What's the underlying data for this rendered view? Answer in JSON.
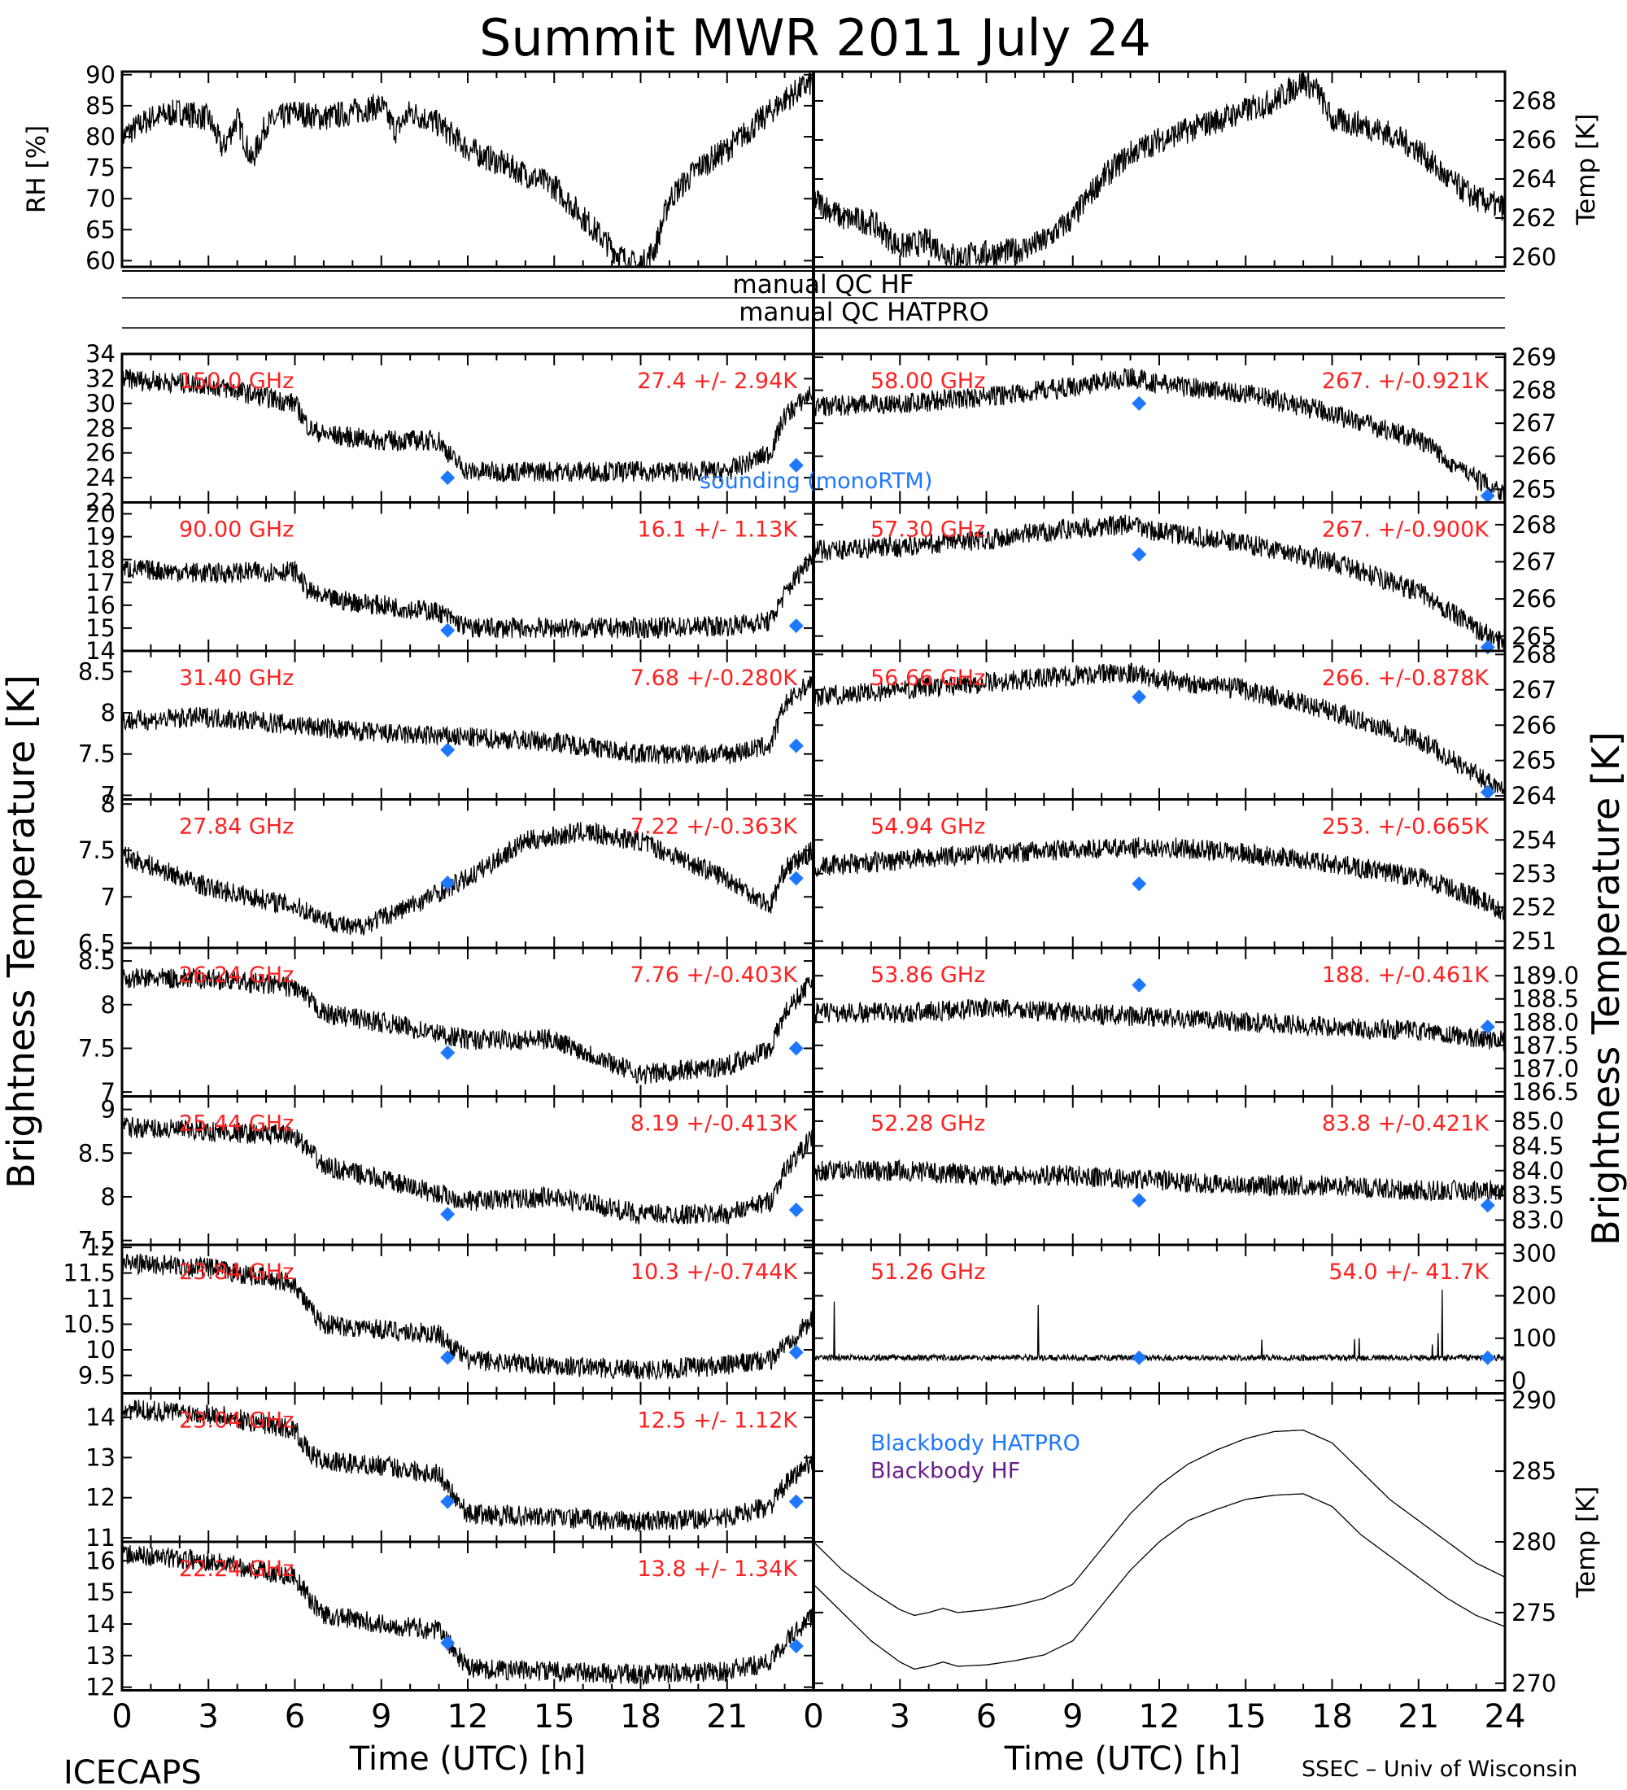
{
  "title": "Summit MWR 2011 July 24",
  "footer": {
    "left_label": "ICECAPS",
    "right_label": "SSEC – Univ of Wisconsin",
    "xlabel": "Time (UTC) [h]"
  },
  "qc": {
    "hf_label": "manual QC HF",
    "hatpro_label": "manual QC HATPRO"
  },
  "left_axis_label": "Brightness Temperature [K]",
  "right_axis_label": "Brightness Temperature [K]",
  "legend": {
    "sounding": "sounding (monoRTM)"
  },
  "colors": {
    "channel_label": "#ff2020",
    "sounding": "#1e78ff",
    "bb_hatpro": "#1e78ff",
    "bb_hf": "#6a1f8a"
  },
  "chart_data": [
    {
      "type": "line",
      "id": "rh",
      "ylabel": "RH [%]",
      "xlim": [
        0,
        24
      ],
      "ylim": [
        59,
        90.5
      ],
      "yticks": [
        60,
        65,
        70,
        75,
        80,
        85,
        90
      ],
      "x": [
        0,
        1,
        2,
        3,
        3.5,
        4,
        4.5,
        5,
        5.5,
        6,
        7,
        8,
        9,
        9.5,
        10,
        10.5,
        11,
        12,
        13,
        14,
        15,
        16,
        17,
        17.5,
        18,
        18.5,
        19,
        20,
        21,
        22,
        23,
        24
      ],
      "values": [
        80,
        83,
        84,
        83,
        78,
        83,
        76,
        82,
        83,
        84,
        83,
        84,
        85,
        81,
        84,
        83,
        82,
        78,
        76,
        74,
        72,
        67,
        62,
        60,
        59,
        62,
        70,
        75,
        78,
        82,
        86,
        89
      ]
    },
    {
      "type": "line",
      "id": "temp",
      "ylabel": "Temp [K]",
      "xlim": [
        0,
        24
      ],
      "ylim": [
        259.5,
        269.5
      ],
      "yticks": [
        260,
        262,
        264,
        266,
        268
      ],
      "x": [
        0,
        1,
        2,
        3,
        4,
        4.5,
        5,
        6,
        7,
        8,
        9,
        10,
        11,
        12,
        13,
        14,
        15,
        16,
        17,
        17.5,
        18,
        19,
        20,
        21,
        22,
        23,
        24
      ],
      "values": [
        263,
        262,
        261.8,
        260.5,
        260.8,
        260.3,
        260,
        260.2,
        260.3,
        260.8,
        262,
        264,
        265.3,
        266,
        266.5,
        267,
        267.5,
        268,
        269,
        268.5,
        267,
        266.8,
        266.3,
        265.5,
        264,
        263,
        262.5
      ]
    },
    {
      "type": "line",
      "id": "l150",
      "channel": "150.0 GHz",
      "stats": "27.4 +/-  2.94K",
      "ylim": [
        22,
        34
      ],
      "yticks": [
        22,
        24,
        26,
        28,
        30,
        32,
        34
      ],
      "x": [
        0,
        3,
        6,
        6.5,
        7,
        9,
        11,
        11.5,
        12,
        15,
        18,
        21,
        22.5,
        23,
        24
      ],
      "values": [
        32,
        31.5,
        30,
        28,
        27.5,
        27,
        27,
        25.5,
        24.5,
        24.5,
        24.5,
        24.5,
        26,
        29,
        31
      ],
      "sounding": [
        [
          11.3,
          24
        ],
        [
          23.4,
          25
        ]
      ]
    },
    {
      "type": "line",
      "id": "l90",
      "channel": "90.00 GHz",
      "stats": "16.1 +/-  1.13K",
      "ylim": [
        14,
        20.5
      ],
      "yticks": [
        14,
        15,
        16,
        17,
        18,
        19,
        20
      ],
      "x": [
        0,
        3,
        6,
        6.5,
        7,
        9,
        11,
        12,
        15,
        18,
        21,
        22.5,
        23,
        24
      ],
      "values": [
        17.6,
        17.4,
        17.5,
        16.6,
        16.3,
        16,
        15.7,
        15,
        15,
        15,
        15.1,
        15.3,
        16.5,
        18.3
      ],
      "sounding": [
        [
          11.3,
          14.9
        ],
        [
          23.4,
          15.1
        ]
      ]
    },
    {
      "type": "line",
      "id": "l3140",
      "channel": "31.40 GHz",
      "stats": "7.68 +/-0.280K",
      "ylim": [
        6.95,
        8.75
      ],
      "yticks": [
        7.0,
        7.5,
        8.0,
        8.5
      ],
      "x": [
        0,
        3,
        6,
        9,
        12,
        15,
        18,
        21,
        22.5,
        23,
        24
      ],
      "values": [
        7.9,
        7.95,
        7.85,
        7.75,
        7.7,
        7.65,
        7.5,
        7.5,
        7.6,
        8.1,
        8.4
      ],
      "sounding": [
        [
          11.3,
          7.55
        ],
        [
          23.4,
          7.6
        ]
      ]
    },
    {
      "type": "line",
      "id": "l2784",
      "channel": "27.84 GHz",
      "stats": "7.22 +/-0.363K",
      "ylim": [
        6.45,
        8.05
      ],
      "yticks": [
        6.5,
        7.0,
        7.5,
        8.0
      ],
      "x": [
        0,
        3,
        6,
        8,
        10,
        12,
        14,
        16,
        18,
        21,
        22.5,
        23,
        24
      ],
      "values": [
        7.45,
        7.1,
        6.9,
        6.65,
        6.9,
        7.2,
        7.6,
        7.7,
        7.6,
        7.2,
        6.9,
        7.3,
        7.5
      ],
      "sounding": [
        [
          11.3,
          7.15
        ],
        [
          23.4,
          7.2
        ]
      ]
    },
    {
      "type": "line",
      "id": "l2624",
      "channel": "26.24 GHz",
      "stats": "7.76 +/-0.403K",
      "ylim": [
        6.95,
        8.65
      ],
      "yticks": [
        7.0,
        7.5,
        8.0,
        8.5
      ],
      "x": [
        0,
        3,
        6,
        7,
        9,
        12,
        15,
        18,
        21,
        22.5,
        23,
        24
      ],
      "values": [
        8.3,
        8.3,
        8.2,
        7.9,
        7.8,
        7.6,
        7.6,
        7.2,
        7.3,
        7.5,
        7.9,
        8.3
      ],
      "sounding": [
        [
          11.3,
          7.45
        ],
        [
          23.4,
          7.5
        ]
      ]
    },
    {
      "type": "line",
      "id": "l2544",
      "channel": "25.44 GHz",
      "stats": "8.19 +/-0.413K",
      "ylim": [
        7.45,
        9.15
      ],
      "yticks": [
        7.5,
        8.0,
        8.5,
        9.0
      ],
      "x": [
        0,
        3,
        6,
        7,
        9,
        12,
        15,
        18,
        21,
        22.5,
        23,
        24
      ],
      "values": [
        8.8,
        8.75,
        8.7,
        8.35,
        8.2,
        7.95,
        8.0,
        7.8,
        7.8,
        7.95,
        8.3,
        8.7
      ],
      "sounding": [
        [
          11.3,
          7.8
        ],
        [
          23.4,
          7.85
        ]
      ]
    },
    {
      "type": "line",
      "id": "l2384",
      "channel": "23.84 GHz",
      "stats": "10.3 +/-0.744K",
      "ylim": [
        9.15,
        12.05
      ],
      "yticks": [
        9.5,
        10.0,
        10.5,
        11.0,
        11.5,
        12.0
      ],
      "x": [
        0,
        3,
        6,
        6.5,
        7,
        9,
        11,
        12,
        15,
        18,
        21,
        22.5,
        23,
        24
      ],
      "values": [
        11.7,
        11.6,
        11.3,
        10.8,
        10.5,
        10.4,
        10.3,
        9.8,
        9.7,
        9.6,
        9.7,
        9.8,
        10.1,
        10.6
      ],
      "sounding": [
        [
          11.3,
          9.85
        ],
        [
          23.4,
          9.95
        ]
      ]
    },
    {
      "type": "line",
      "id": "l2304",
      "channel": "23.04 GHz",
      "stats": "12.5 +/-  1.12K",
      "ylim": [
        10.9,
        14.6
      ],
      "yticks": [
        11,
        12,
        13,
        14
      ],
      "x": [
        0,
        3,
        6,
        6.5,
        7,
        9,
        11,
        12,
        15,
        18,
        21,
        22.5,
        23,
        24
      ],
      "values": [
        14.2,
        14.1,
        13.7,
        13.1,
        12.9,
        12.8,
        12.6,
        11.6,
        11.5,
        11.4,
        11.5,
        11.8,
        12.3,
        13.0
      ],
      "sounding": [
        [
          11.3,
          11.9
        ],
        [
          23.4,
          11.9
        ]
      ]
    },
    {
      "type": "line",
      "id": "l2224",
      "channel": "22.24 GHz",
      "stats": "13.8 +/-  1.34K",
      "ylim": [
        11.9,
        16.6
      ],
      "yticks": [
        12,
        13,
        14,
        15,
        16
      ],
      "x": [
        0,
        3,
        6,
        6.5,
        7,
        9,
        11,
        12,
        15,
        18,
        21,
        22.5,
        23,
        24
      ],
      "values": [
        16.2,
        16.0,
        15.5,
        14.8,
        14.3,
        14.0,
        13.8,
        12.6,
        12.5,
        12.4,
        12.5,
        12.8,
        13.4,
        14.3
      ],
      "sounding": [
        [
          11.3,
          13.4
        ],
        [
          23.4,
          13.3
        ]
      ]
    },
    {
      "type": "line",
      "id": "r5800",
      "channel": "58.00 GHz",
      "stats": "267. +/-0.921K",
      "ylim": [
        264.6,
        269.1
      ],
      "yticks": [
        265,
        266,
        267,
        268,
        269
      ],
      "x": [
        0,
        3,
        6,
        9,
        11,
        12,
        15,
        18,
        21,
        23,
        24
      ],
      "values": [
        267.5,
        267.6,
        267.8,
        268.1,
        268.4,
        268.2,
        267.9,
        267.3,
        266.5,
        265.3,
        264.9
      ],
      "sounding": [
        [
          11.3,
          267.6
        ],
        [
          23.4,
          264.8
        ]
      ]
    },
    {
      "type": "line",
      "id": "r5730",
      "channel": "57.30 GHz",
      "stats": "267. +/-0.900K",
      "ylim": [
        264.6,
        268.6
      ],
      "yticks": [
        265,
        266,
        267,
        268
      ],
      "x": [
        0,
        3,
        6,
        9,
        11,
        12,
        15,
        18,
        21,
        23,
        24
      ],
      "values": [
        267.3,
        267.4,
        267.6,
        267.9,
        268.0,
        267.8,
        267.5,
        267.0,
        266.2,
        265.2,
        264.8
      ],
      "sounding": [
        [
          11.3,
          267.2
        ],
        [
          23.4,
          264.7
        ]
      ]
    },
    {
      "type": "line",
      "id": "r5666",
      "channel": "56.66 GHz",
      "stats": "266. +/-0.878K",
      "ylim": [
        263.9,
        268.1
      ],
      "yticks": [
        264,
        265,
        266,
        267,
        268
      ],
      "x": [
        0,
        3,
        6,
        9,
        11,
        12,
        15,
        18,
        21,
        23,
        24
      ],
      "values": [
        266.8,
        267.0,
        267.2,
        267.4,
        267.5,
        267.3,
        267.0,
        266.4,
        265.6,
        264.6,
        264.2
      ],
      "sounding": [
        [
          11.3,
          266.8
        ],
        [
          23.4,
          264.1
        ]
      ]
    },
    {
      "type": "line",
      "id": "r5494",
      "channel": "54.94 GHz",
      "stats": "253. +/-0.665K",
      "ylim": [
        250.8,
        255.2
      ],
      "yticks": [
        251,
        252,
        253,
        254
      ],
      "x": [
        0,
        3,
        6,
        9,
        12,
        15,
        18,
        21,
        23,
        24
      ],
      "values": [
        253.2,
        253.4,
        253.6,
        253.7,
        253.8,
        253.6,
        253.3,
        252.9,
        252.3,
        251.8
      ],
      "sounding": [
        [
          11.3,
          252.7
        ]
      ]
    },
    {
      "type": "line",
      "id": "r5386",
      "channel": "53.86 GHz",
      "stats": "188. +/-0.461K",
      "ylim": [
        186.4,
        189.6
      ],
      "yticks": [
        186.5,
        187.0,
        187.5,
        188.0,
        188.5,
        189.0
      ],
      "ytick_labels": [
        "186.5",
        "187.0",
        "187.5",
        "188.0",
        "188.5",
        "189.0"
      ],
      "x": [
        0,
        3,
        6,
        9,
        12,
        15,
        18,
        21,
        24
      ],
      "values": [
        188.2,
        188.2,
        188.3,
        188.2,
        188.1,
        188.0,
        187.9,
        187.8,
        187.6
      ],
      "sounding": [
        [
          11.3,
          188.8
        ],
        [
          23.4,
          187.9
        ]
      ]
    },
    {
      "type": "line",
      "id": "r5228",
      "channel": "52.28 GHz",
      "stats": "83.8 +/-0.421K",
      "ylim": [
        82.5,
        85.5
      ],
      "yticks": [
        83.0,
        83.5,
        84.0,
        84.5,
        85.0
      ],
      "ytick_labels": [
        "83.0",
        "83.5",
        "84.0",
        "84.5",
        "85.0"
      ],
      "x": [
        0,
        3,
        6,
        9,
        12,
        15,
        18,
        21,
        24
      ],
      "values": [
        84.0,
        84.0,
        83.9,
        83.9,
        83.8,
        83.7,
        83.7,
        83.6,
        83.6
      ],
      "sounding": [
        [
          11.3,
          83.4
        ],
        [
          23.4,
          83.3
        ]
      ]
    },
    {
      "type": "line",
      "id": "r5126",
      "channel": "51.26 GHz",
      "stats": "54.0 +/-  41.7K",
      "ylim": [
        -30,
        320
      ],
      "yticks": [
        0,
        100,
        200,
        300
      ],
      "x": [
        0,
        24
      ],
      "values": [
        54,
        54
      ],
      "sounding": [
        [
          11.3,
          54
        ],
        [
          23.4,
          54
        ]
      ]
    },
    {
      "type": "line",
      "id": "bb",
      "ylabel": "Temp [K]",
      "ylim": [
        269.5,
        290.5
      ],
      "yticks": [
        270,
        275,
        280,
        285,
        290
      ],
      "series": [
        {
          "name": "Blackbody HATPRO",
          "color": "#1e78ff",
          "x": [
            0,
            1,
            2,
            3,
            3.5,
            4,
            4.5,
            5,
            6,
            7,
            8,
            9,
            10,
            11,
            12,
            13,
            14,
            15,
            16,
            17,
            18,
            19,
            20,
            21,
            22,
            23,
            24
          ],
          "values": [
            280,
            278,
            276.5,
            275.2,
            274.8,
            275,
            275.3,
            275,
            275.2,
            275.5,
            276,
            277,
            279.5,
            282,
            284,
            285.5,
            286.5,
            287.3,
            287.8,
            287.9,
            287,
            285,
            283,
            281.5,
            280,
            278.5,
            277.5
          ]
        },
        {
          "name": "Blackbody HF",
          "color": "#6a1f8a",
          "x": [
            0,
            1,
            2,
            3,
            3.5,
            4,
            4.5,
            5,
            6,
            7,
            8,
            9,
            10,
            11,
            12,
            13,
            14,
            15,
            16,
            17,
            18,
            19,
            20,
            21,
            22,
            23,
            24
          ],
          "values": [
            277,
            275,
            273,
            271.5,
            271,
            271.2,
            271.5,
            271.2,
            271.3,
            271.6,
            272,
            273,
            275.5,
            278,
            280,
            281.5,
            282.3,
            283,
            283.3,
            283.4,
            282.5,
            280.5,
            279,
            277.5,
            276,
            274.8,
            274
          ]
        }
      ]
    }
  ],
  "xticks": [
    "0",
    "3",
    "6",
    "9",
    "12",
    "15",
    "18",
    "21",
    "0",
    "3",
    "6",
    "9",
    "12",
    "15",
    "18",
    "21",
    "24"
  ]
}
